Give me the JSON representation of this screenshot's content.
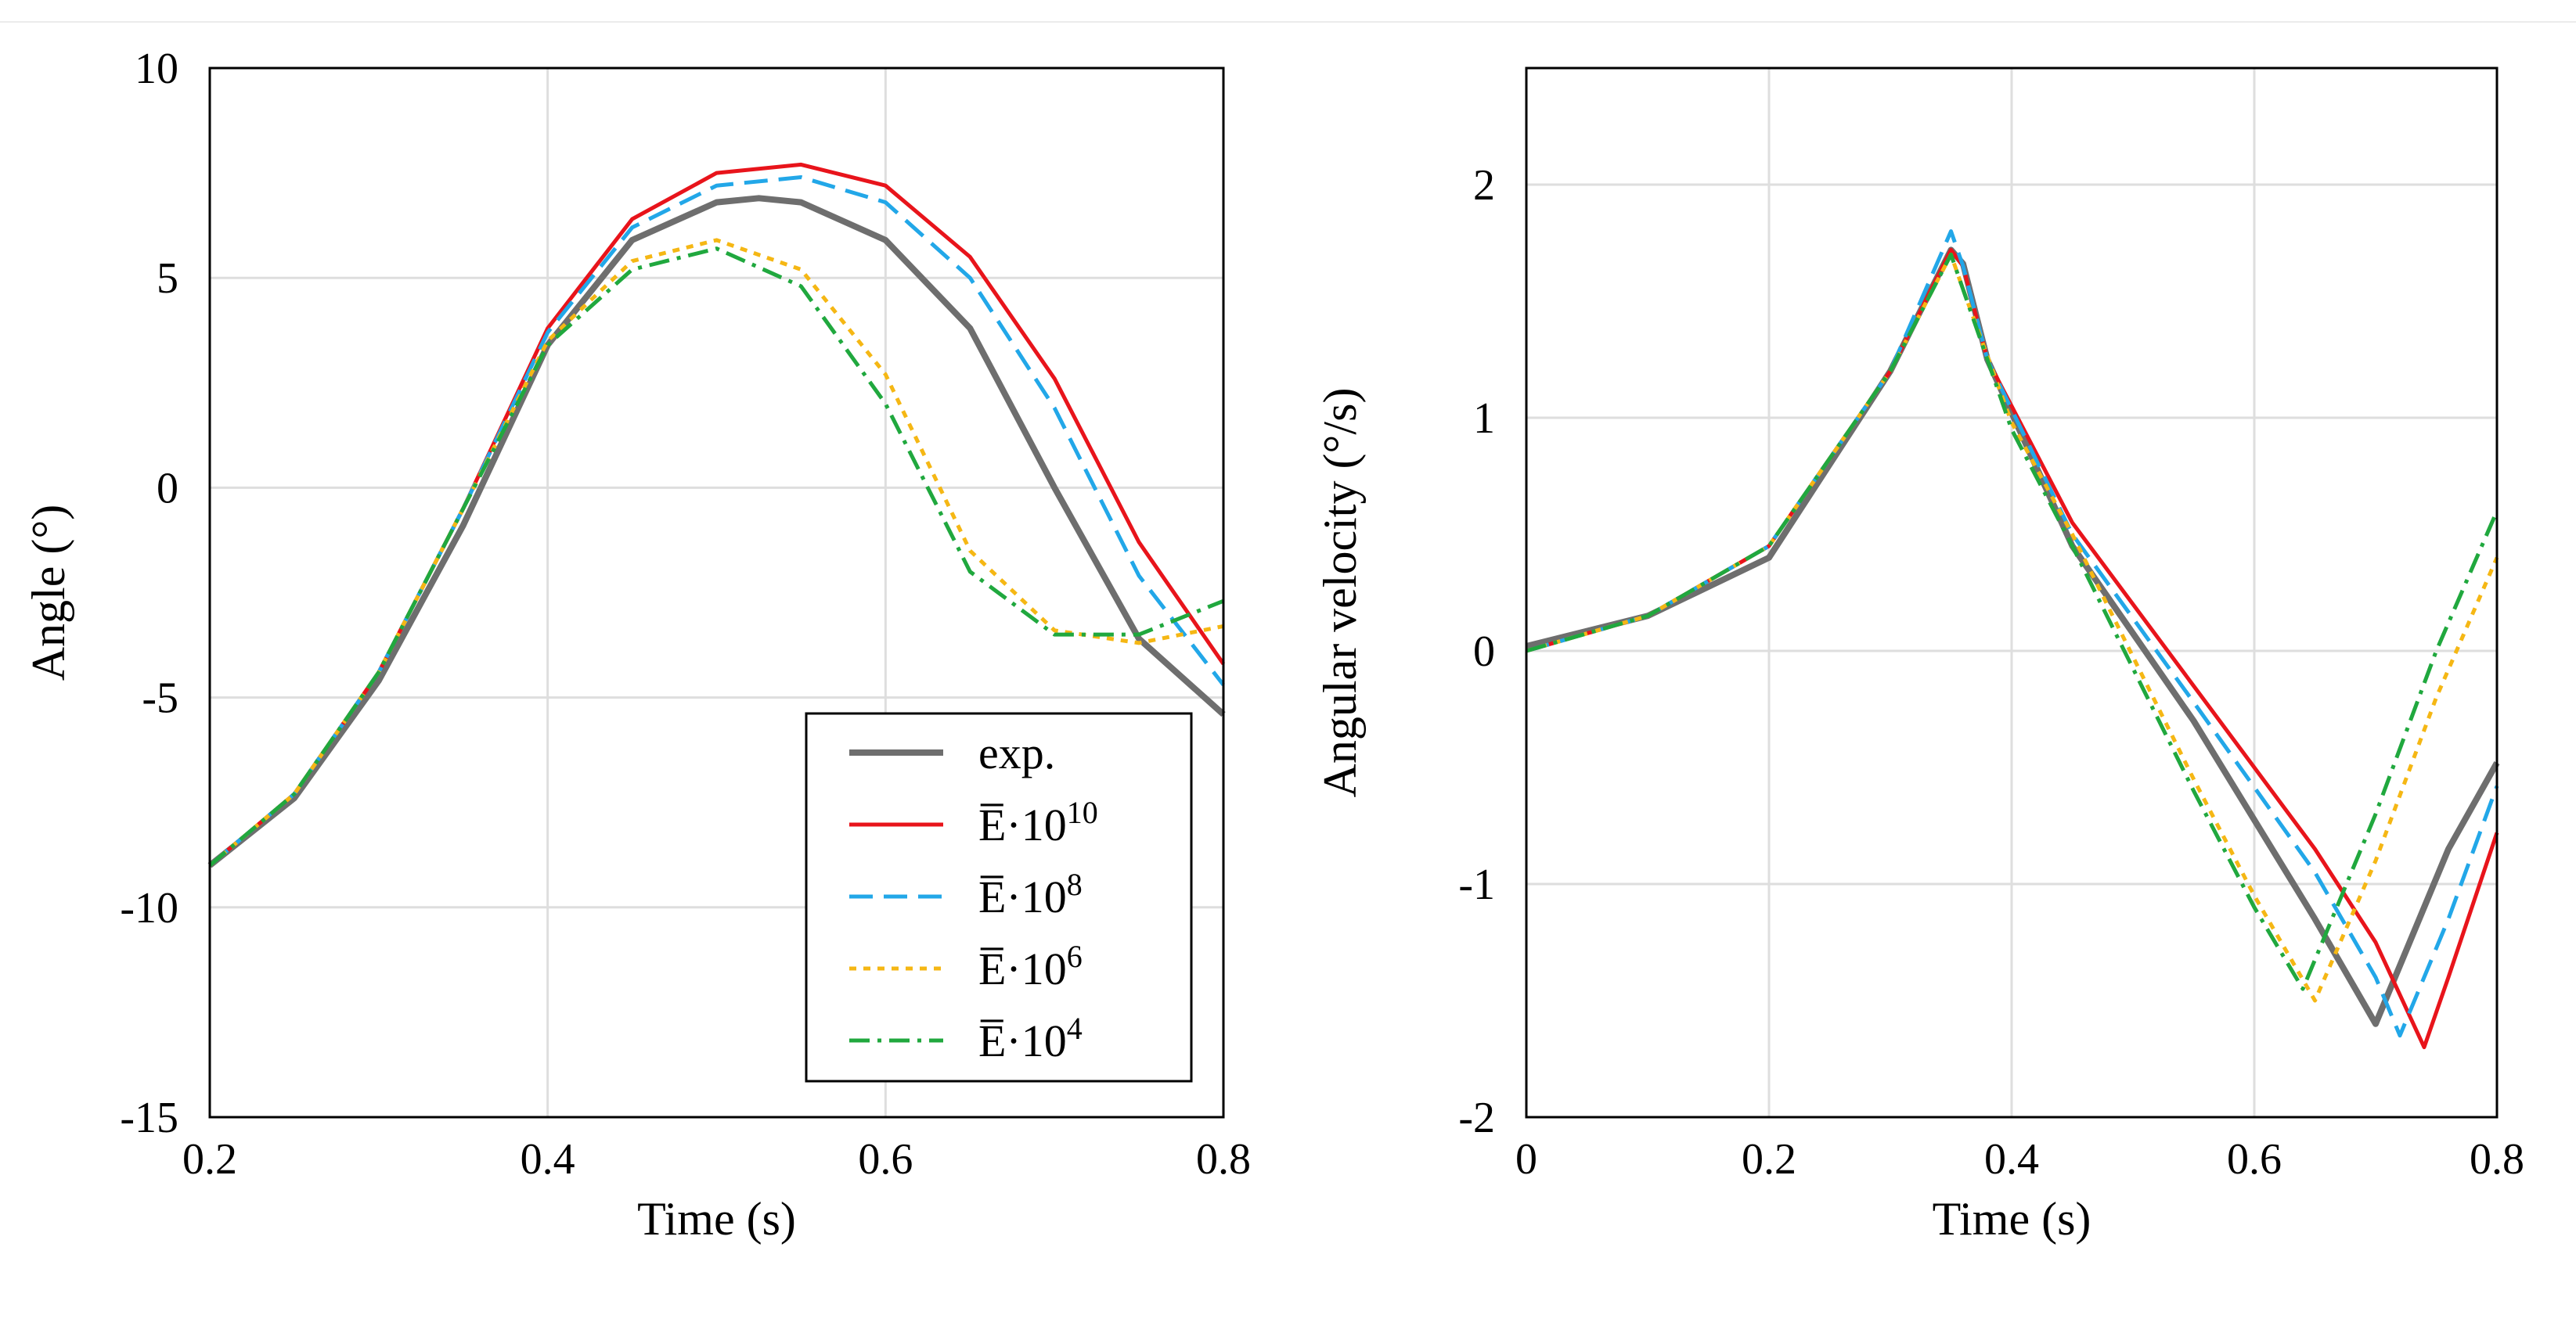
{
  "chart_data": [
    {
      "type": "line",
      "xlabel": "Time (s)",
      "ylabel": "Angle (°)",
      "xlim": [
        0.2,
        0.8
      ],
      "ylim": [
        -15,
        10
      ],
      "xticks": [
        0.2,
        0.4,
        0.6,
        0.8
      ],
      "xtick_labels": [
        "0.2",
        "0.4",
        "0.6",
        "0.8"
      ],
      "yticks": [
        -15,
        -10,
        -5,
        0,
        5,
        10
      ],
      "ytick_labels": [
        "-15",
        "-10",
        "-5",
        "0",
        "5",
        "10"
      ],
      "grid": true,
      "legend": "bottom-right",
      "series": [
        {
          "name": "exp.",
          "legend_base": "exp.",
          "legend_exp": "",
          "color": "#6e6e6e",
          "dash": "solid",
          "x": [
            0.2,
            0.25,
            0.3,
            0.35,
            0.4,
            0.45,
            0.5,
            0.525,
            0.55,
            0.6,
            0.65,
            0.7,
            0.75,
            0.8
          ],
          "y": [
            -9.0,
            -7.4,
            -4.6,
            -0.9,
            3.4,
            5.9,
            6.8,
            6.9,
            6.8,
            5.9,
            3.8,
            0.0,
            -3.6,
            -5.4
          ]
        },
        {
          "name": "Ē·10^10",
          "legend_base": "E̅·10",
          "legend_exp": "10",
          "color": "#e8141b",
          "dash": "solid",
          "x": [
            0.2,
            0.25,
            0.3,
            0.35,
            0.4,
            0.45,
            0.5,
            0.55,
            0.6,
            0.65,
            0.7,
            0.75,
            0.8
          ],
          "y": [
            -9.0,
            -7.3,
            -4.4,
            -0.5,
            3.8,
            6.4,
            7.5,
            7.7,
            7.2,
            5.5,
            2.6,
            -1.3,
            -4.2
          ]
        },
        {
          "name": "Ē·10^8",
          "legend_base": "E̅·10",
          "legend_exp": "8",
          "color": "#22a7e8",
          "dash": "dash",
          "x": [
            0.2,
            0.25,
            0.3,
            0.35,
            0.4,
            0.45,
            0.5,
            0.55,
            0.6,
            0.65,
            0.7,
            0.75,
            0.8
          ],
          "y": [
            -9.0,
            -7.3,
            -4.4,
            -0.5,
            3.7,
            6.2,
            7.2,
            7.4,
            6.8,
            5.0,
            1.9,
            -2.1,
            -4.7
          ]
        },
        {
          "name": "Ē·10^6",
          "legend_base": "E̅·10",
          "legend_exp": "6",
          "color": "#f5b714",
          "dash": "dot",
          "x": [
            0.2,
            0.25,
            0.3,
            0.35,
            0.4,
            0.45,
            0.5,
            0.55,
            0.6,
            0.65,
            0.7,
            0.75,
            0.8
          ],
          "y": [
            -9.0,
            -7.3,
            -4.4,
            -0.5,
            3.5,
            5.4,
            5.9,
            5.2,
            2.7,
            -1.5,
            -3.4,
            -3.7,
            -3.3
          ]
        },
        {
          "name": "Ē·10^4",
          "legend_base": "E̅·10",
          "legend_exp": "4",
          "color": "#20a83e",
          "dash": "dashdot",
          "x": [
            0.2,
            0.25,
            0.3,
            0.35,
            0.4,
            0.45,
            0.5,
            0.55,
            0.6,
            0.65,
            0.7,
            0.75,
            0.8
          ],
          "y": [
            -9.0,
            -7.3,
            -4.4,
            -0.5,
            3.4,
            5.2,
            5.7,
            4.8,
            2.0,
            -2.0,
            -3.5,
            -3.5,
            -2.7
          ]
        }
      ]
    },
    {
      "type": "line",
      "xlabel": "Time (s)",
      "ylabel": "Angular velocity (°/s)",
      "xlim": [
        0,
        0.8
      ],
      "ylim": [
        -2,
        2.5
      ],
      "xticks": [
        0,
        0.2,
        0.4,
        0.6,
        0.8
      ],
      "xtick_labels": [
        "0",
        "0.2",
        "0.4",
        "0.6",
        "0.8"
      ],
      "yticks": [
        -2,
        -1,
        0,
        1,
        2
      ],
      "ytick_labels": [
        "-2",
        "-1",
        "0",
        "1",
        "2"
      ],
      "grid": true,
      "series": [
        {
          "name": "exp.",
          "color": "#6e6e6e",
          "dash": "solid",
          "x": [
            0,
            0.1,
            0.2,
            0.3,
            0.35,
            0.36,
            0.38,
            0.45,
            0.55,
            0.65,
            0.7,
            0.72,
            0.76,
            0.8
          ],
          "y": [
            0.02,
            0.15,
            0.4,
            1.2,
            1.72,
            1.66,
            1.25,
            0.45,
            -0.3,
            -1.15,
            -1.6,
            -1.35,
            -0.85,
            -0.48
          ]
        },
        {
          "name": "Ē·10^10",
          "color": "#e8141b",
          "dash": "solid",
          "x": [
            0,
            0.1,
            0.2,
            0.3,
            0.35,
            0.36,
            0.38,
            0.45,
            0.55,
            0.65,
            0.7,
            0.74,
            0.76,
            0.8
          ],
          "y": [
            0.0,
            0.15,
            0.45,
            1.2,
            1.72,
            1.65,
            1.25,
            0.55,
            -0.15,
            -0.85,
            -1.25,
            -1.7,
            -1.4,
            -0.78
          ]
        },
        {
          "name": "Ē·10^8",
          "color": "#22a7e8",
          "dash": "dash",
          "x": [
            0,
            0.1,
            0.2,
            0.3,
            0.35,
            0.36,
            0.38,
            0.45,
            0.55,
            0.65,
            0.7,
            0.72,
            0.76,
            0.8
          ],
          "y": [
            0.0,
            0.15,
            0.45,
            1.2,
            1.8,
            1.65,
            1.25,
            0.5,
            -0.22,
            -0.95,
            -1.4,
            -1.65,
            -1.15,
            -0.58
          ]
        },
        {
          "name": "Ē·10^6",
          "color": "#f5b714",
          "dash": "dot",
          "x": [
            0,
            0.1,
            0.2,
            0.3,
            0.35,
            0.36,
            0.4,
            0.45,
            0.55,
            0.6,
            0.65,
            0.7,
            0.75,
            0.8
          ],
          "y": [
            0.0,
            0.15,
            0.45,
            1.2,
            1.7,
            1.55,
            0.98,
            0.5,
            -0.55,
            -1.05,
            -1.5,
            -0.9,
            -0.2,
            0.4
          ]
        },
        {
          "name": "Ē·10^4",
          "color": "#20a83e",
          "dash": "dashdot",
          "x": [
            0,
            0.1,
            0.2,
            0.3,
            0.35,
            0.36,
            0.4,
            0.45,
            0.55,
            0.6,
            0.64,
            0.7,
            0.75,
            0.8
          ],
          "y": [
            0.0,
            0.15,
            0.45,
            1.2,
            1.7,
            1.55,
            0.95,
            0.45,
            -0.6,
            -1.1,
            -1.45,
            -0.7,
            0.0,
            0.6
          ]
        }
      ]
    }
  ]
}
